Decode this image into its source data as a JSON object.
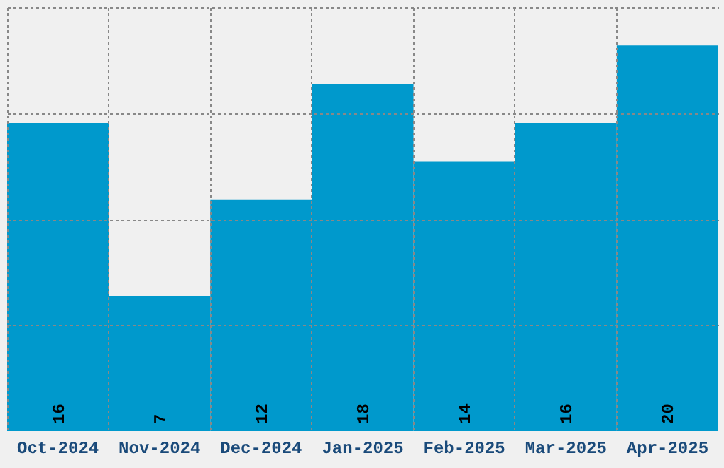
{
  "chart_data": {
    "type": "bar",
    "categories": [
      "Oct-2024",
      "Nov-2024",
      "Dec-2024",
      "Jan-2025",
      "Feb-2025",
      "Mar-2025",
      "Apr-2025"
    ],
    "values": [
      16,
      7,
      12,
      18,
      14,
      16,
      20
    ],
    "color": "#0099cc",
    "data_labels": true,
    "grid": true,
    "tick_labels": "x",
    "ylim": [
      0,
      22
    ],
    "yticks": [
      {
        "value": 5.5,
        "label": null
      },
      {
        "value": 11,
        "label": null
      },
      {
        "value": 16.5,
        "label": null
      },
      {
        "value": 22,
        "label": null
      }
    ]
  }
}
